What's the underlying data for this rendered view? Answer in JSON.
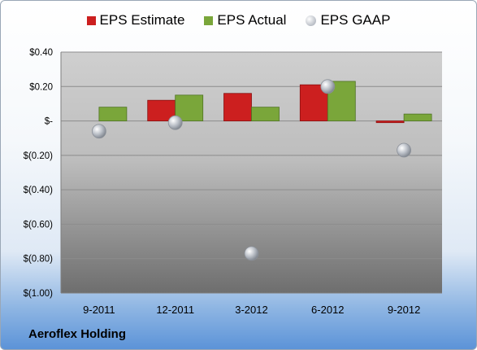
{
  "company": "Aeroflex Holding",
  "colors": {
    "estimate": "#cc1f1f",
    "actual": "#7aa63a",
    "gaap": "#b9bec6"
  },
  "chart_data": {
    "type": "bar",
    "categories": [
      "9-2011",
      "12-2011",
      "3-2012",
      "6-2012",
      "9-2012"
    ],
    "series": [
      {
        "name": "EPS Estimate",
        "kind": "bar",
        "values": [
          null,
          0.12,
          0.16,
          0.21,
          -0.01
        ]
      },
      {
        "name": "EPS Actual",
        "kind": "bar",
        "values": [
          0.08,
          0.15,
          0.08,
          0.23,
          0.04
        ]
      },
      {
        "name": "EPS GAAP",
        "kind": "scatter",
        "values": [
          -0.06,
          -0.01,
          -0.77,
          0.2,
          -0.17
        ]
      }
    ],
    "y_ticks": [
      {
        "value": 0.4,
        "label": "$0.40"
      },
      {
        "value": 0.2,
        "label": "$0.20"
      },
      {
        "value": 0.0,
        "label": "$-"
      },
      {
        "value": -0.2,
        "label": "$(0.20)"
      },
      {
        "value": -0.4,
        "label": "$(0.40)"
      },
      {
        "value": -0.6,
        "label": "$(0.60)"
      },
      {
        "value": -0.8,
        "label": "$(0.80)"
      },
      {
        "value": -1.0,
        "label": "$(1.00)"
      }
    ],
    "ylim": [
      -1.0,
      0.4
    ],
    "grid": true,
    "legend_position": "top"
  }
}
